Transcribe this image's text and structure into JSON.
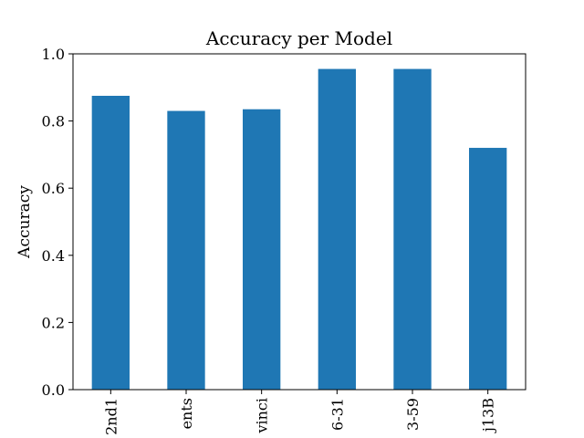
{
  "chart_data": {
    "type": "bar",
    "title": "Accuracy per Model",
    "xlabel": "",
    "ylabel": "Accuracy",
    "categories": [
      "2nd1",
      "ents",
      "vinci",
      "6-31",
      "3-59",
      "j13B"
    ],
    "values": [
      0.875,
      0.83,
      0.835,
      0.955,
      0.955,
      0.72
    ],
    "ylim": [
      0,
      1.0
    ],
    "yticks": [
      0.0,
      0.2,
      0.4,
      0.6,
      0.8,
      1.0
    ],
    "ytick_labels": [
      "0.0",
      "0.2",
      "0.4",
      "0.6",
      "0.8",
      "1.0"
    ],
    "bar_color": "#1f77b4",
    "grid": false,
    "legend": "none"
  }
}
